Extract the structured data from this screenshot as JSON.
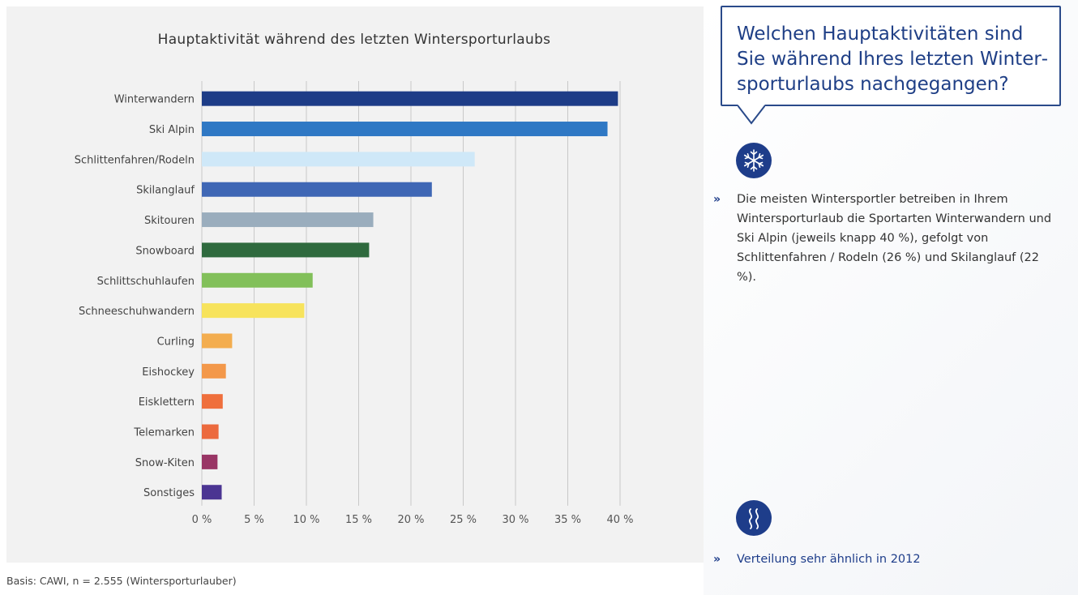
{
  "chart_data": {
    "type": "bar",
    "orientation": "horizontal",
    "title": "Hauptaktivität während des letzten Wintersporturlaubs",
    "categories": [
      "Winterwandern",
      "Ski Alpin",
      "Schlittenfahren/Rodeln",
      "Skilanglauf",
      "Skitouren",
      "Snowboard",
      "Schlittschuhlaufen",
      "Schneeschuhwandern",
      "Curling",
      "Eishockey",
      "Eisklettern",
      "Telemarken",
      "Snow-Kiten",
      "Sonstiges"
    ],
    "values": [
      39.8,
      38.8,
      26.1,
      22.0,
      16.4,
      16.0,
      10.6,
      9.8,
      2.9,
      2.3,
      2.0,
      1.6,
      1.5,
      1.9
    ],
    "colors": [
      "#1d3c87",
      "#2f78c4",
      "#cfe8f8",
      "#3f67b5",
      "#9aadbd",
      "#2f6a3e",
      "#82c05a",
      "#f7e35c",
      "#f3ad4f",
      "#f3984a",
      "#ef6f3c",
      "#ec6a3e",
      "#993565",
      "#4b3592"
    ],
    "xlim": [
      0,
      40
    ],
    "xticks": [
      "0 %",
      "5 %",
      "10 %",
      "15 %",
      "20 %",
      "25 %",
      "30 %",
      "35 %",
      "40 %"
    ],
    "grid": true
  },
  "footnote": "Basis: CAWI, n = 2.555 (Wintersporturlauber)",
  "question": "Welchen Hauptaktivitäten sind Sie während Ihres letzten Winter­sporturlaubs nachgegangen?",
  "icons": {
    "top": "snowflake-icon",
    "bottom": "waves-icon"
  },
  "bullets": [
    {
      "marker": "»",
      "text": "Die meisten Wintersportler betreiben in Ihrem Wintersporturlaub die Sportarten Winterwandern und Ski Alpin (jeweils knapp 40 %), gefolgt von Schlittenfahren / Rodeln (26 %) und Skilanglauf (22 %)."
    },
    {
      "marker": "»",
      "text": "Verteilung sehr ähnlich in 2012"
    }
  ],
  "colors": {
    "accent": "#1e3d8a",
    "panel": "#f2f2f2"
  }
}
